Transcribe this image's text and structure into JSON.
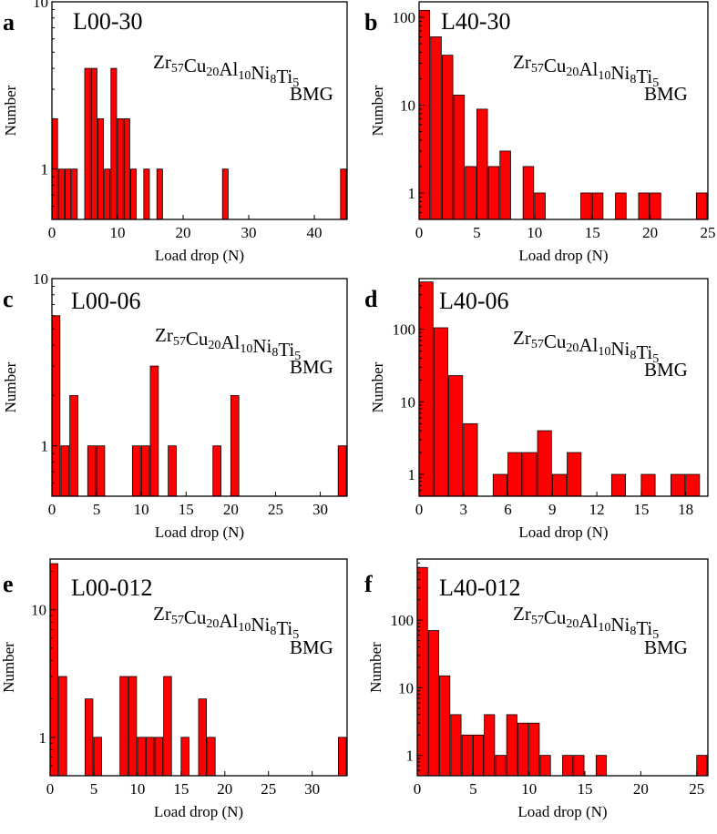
{
  "chart_data": [
    {
      "type": "bar",
      "panel": "a",
      "title": "L00-30",
      "material": "Zr57Cu20Al10Ni8Ti5",
      "material_parts": [
        [
          "Zr",
          ""
        ],
        [
          "",
          "57"
        ],
        [
          "Cu",
          ""
        ],
        [
          "",
          "20"
        ],
        [
          "Al",
          ""
        ],
        [
          "",
          "10"
        ],
        [
          "Ni",
          ""
        ],
        [
          "",
          "8"
        ],
        [
          "Ti",
          ""
        ],
        [
          "",
          "5"
        ]
      ],
      "label_bmg": "BMG",
      "xlabel": "Load drop (N)",
      "ylabel": "Number",
      "yscale": "log",
      "xlim": [
        0,
        45
      ],
      "ylim": [
        0.5,
        10
      ],
      "xticks": [
        0,
        10,
        20,
        30,
        40
      ],
      "yticks": [
        1,
        10
      ],
      "bin_width": 1,
      "bars": [
        {
          "x": 0,
          "value": 2
        },
        {
          "x": 1,
          "value": 1
        },
        {
          "x": 2,
          "value": 1
        },
        {
          "x": 3,
          "value": 1
        },
        {
          "x": 5,
          "value": 4
        },
        {
          "x": 6,
          "value": 4
        },
        {
          "x": 7,
          "value": 2
        },
        {
          "x": 8,
          "value": 1
        },
        {
          "x": 9,
          "value": 4
        },
        {
          "x": 10,
          "value": 2
        },
        {
          "x": 11,
          "value": 2
        },
        {
          "x": 12,
          "value": 1
        },
        {
          "x": 14,
          "value": 1
        },
        {
          "x": 16,
          "value": 1
        },
        {
          "x": 26,
          "value": 1
        },
        {
          "x": 44,
          "value": 1
        }
      ]
    },
    {
      "type": "bar",
      "panel": "b",
      "title": "L40-30",
      "material": "Zr57Cu20Al10Ni8Ti5",
      "material_parts": [
        [
          "Zr",
          ""
        ],
        [
          "",
          "57"
        ],
        [
          "Cu",
          ""
        ],
        [
          "",
          "20"
        ],
        [
          "Al",
          ""
        ],
        [
          "",
          "10"
        ],
        [
          "Ni",
          ""
        ],
        [
          "",
          "8"
        ],
        [
          "Ti",
          ""
        ],
        [
          "",
          "5"
        ]
      ],
      "label_bmg": "BMG",
      "xlabel": "Load drop (N)",
      "ylabel": "Number",
      "yscale": "log",
      "xlim": [
        0,
        25
      ],
      "ylim": [
        0.5,
        150
      ],
      "xticks": [
        0,
        5,
        10,
        15,
        20,
        25
      ],
      "yticks": [
        1,
        10,
        100
      ],
      "bin_width": 1,
      "bars": [
        {
          "x": 0,
          "value": 120
        },
        {
          "x": 1,
          "value": 60
        },
        {
          "x": 2,
          "value": 37
        },
        {
          "x": 3,
          "value": 13
        },
        {
          "x": 4,
          "value": 2
        },
        {
          "x": 5,
          "value": 9
        },
        {
          "x": 6,
          "value": 2
        },
        {
          "x": 7,
          "value": 3
        },
        {
          "x": 9,
          "value": 2
        },
        {
          "x": 10,
          "value": 1
        },
        {
          "x": 14,
          "value": 1
        },
        {
          "x": 15,
          "value": 1
        },
        {
          "x": 17,
          "value": 1
        },
        {
          "x": 19,
          "value": 1
        },
        {
          "x": 20,
          "value": 1
        },
        {
          "x": 24,
          "value": 1
        }
      ]
    },
    {
      "type": "bar",
      "panel": "c",
      "title": "L00-06",
      "material": "Zr57Cu20Al10Ni8Ti5",
      "material_parts": [
        [
          "Zr",
          ""
        ],
        [
          "",
          "57"
        ],
        [
          "Cu",
          ""
        ],
        [
          "",
          "20"
        ],
        [
          "Al",
          ""
        ],
        [
          "",
          "10"
        ],
        [
          "Ni",
          ""
        ],
        [
          "",
          "8"
        ],
        [
          "Ti",
          ""
        ],
        [
          "",
          "5"
        ]
      ],
      "label_bmg": "BMG",
      "xlabel": "Load drop (N)",
      "ylabel": "Number",
      "yscale": "log",
      "xlim": [
        0,
        33
      ],
      "ylim": [
        0.5,
        10
      ],
      "xticks": [
        0,
        5,
        10,
        15,
        20,
        25,
        30
      ],
      "yticks": [
        1,
        10
      ],
      "bin_width": 1,
      "bars": [
        {
          "x": 0,
          "value": 6
        },
        {
          "x": 1,
          "value": 1
        },
        {
          "x": 2,
          "value": 2
        },
        {
          "x": 4,
          "value": 1
        },
        {
          "x": 5,
          "value": 1
        },
        {
          "x": 9,
          "value": 1
        },
        {
          "x": 10,
          "value": 1
        },
        {
          "x": 11,
          "value": 3
        },
        {
          "x": 13,
          "value": 1
        },
        {
          "x": 18,
          "value": 1
        },
        {
          "x": 20,
          "value": 2
        },
        {
          "x": 32,
          "value": 1
        }
      ]
    },
    {
      "type": "bar",
      "panel": "d",
      "title": "L40-06",
      "material": "Zr57Cu20Al10Ni8Ti5",
      "material_parts": [
        [
          "Zr",
          ""
        ],
        [
          "",
          "57"
        ],
        [
          "Cu",
          ""
        ],
        [
          "",
          "20"
        ],
        [
          "Al",
          ""
        ],
        [
          "",
          "10"
        ],
        [
          "Ni",
          ""
        ],
        [
          "",
          "8"
        ],
        [
          "Ti",
          ""
        ],
        [
          "",
          "5"
        ]
      ],
      "label_bmg": "BMG",
      "xlabel": "Load drop (N)",
      "ylabel": "Number",
      "yscale": "log",
      "xlim": [
        0,
        19.5
      ],
      "ylim": [
        0.5,
        500
      ],
      "xticks": [
        0,
        3,
        6,
        9,
        12,
        15,
        18
      ],
      "yticks": [
        1,
        10,
        100
      ],
      "bin_width": 1,
      "bars": [
        {
          "x": 0,
          "value": 450
        },
        {
          "x": 1,
          "value": 105
        },
        {
          "x": 2,
          "value": 23
        },
        {
          "x": 3,
          "value": 5
        },
        {
          "x": 5,
          "value": 1
        },
        {
          "x": 6,
          "value": 2
        },
        {
          "x": 7,
          "value": 2
        },
        {
          "x": 8,
          "value": 4
        },
        {
          "x": 9,
          "value": 1
        },
        {
          "x": 10,
          "value": 2
        },
        {
          "x": 13,
          "value": 1
        },
        {
          "x": 15,
          "value": 1
        },
        {
          "x": 17,
          "value": 1
        },
        {
          "x": 18,
          "value": 1
        }
      ]
    },
    {
      "type": "bar",
      "panel": "e",
      "title": "L00-012",
      "material": "Zr57Cu20Al10Ni8Ti5",
      "material_parts": [
        [
          "Zr",
          ""
        ],
        [
          "",
          "57"
        ],
        [
          "Cu",
          ""
        ],
        [
          "",
          "20"
        ],
        [
          "Al",
          ""
        ],
        [
          "",
          "10"
        ],
        [
          "Ni",
          ""
        ],
        [
          "",
          "8"
        ],
        [
          "Ti",
          ""
        ],
        [
          "",
          "5"
        ]
      ],
      "label_bmg": "BMG",
      "xlabel": "Load drop (N)",
      "ylabel": "Number",
      "yscale": "log",
      "xlim": [
        0,
        34
      ],
      "ylim": [
        0.5,
        25
      ],
      "xticks": [
        0,
        5,
        10,
        15,
        20,
        25,
        30
      ],
      "yticks": [
        1,
        10
      ],
      "bin_width": 1,
      "bars": [
        {
          "x": 0,
          "value": 23
        },
        {
          "x": 1,
          "value": 3
        },
        {
          "x": 4,
          "value": 2
        },
        {
          "x": 5,
          "value": 1
        },
        {
          "x": 8,
          "value": 3
        },
        {
          "x": 9,
          "value": 3
        },
        {
          "x": 10,
          "value": 1
        },
        {
          "x": 11,
          "value": 1
        },
        {
          "x": 12,
          "value": 1
        },
        {
          "x": 13,
          "value": 3
        },
        {
          "x": 15,
          "value": 1
        },
        {
          "x": 17,
          "value": 2
        },
        {
          "x": 18,
          "value": 1
        },
        {
          "x": 33,
          "value": 1
        }
      ]
    },
    {
      "type": "bar",
      "panel": "f",
      "title": "L40-012",
      "material": "Zr57Cu20Al10Ni8Ti5",
      "material_parts": [
        [
          "Zr",
          ""
        ],
        [
          "",
          "57"
        ],
        [
          "Cu",
          ""
        ],
        [
          "",
          "20"
        ],
        [
          "Al",
          ""
        ],
        [
          "",
          "10"
        ],
        [
          "Ni",
          ""
        ],
        [
          "",
          "8"
        ],
        [
          "Ti",
          ""
        ],
        [
          "",
          "5"
        ]
      ],
      "label_bmg": "BMG",
      "xlabel": "Load drop (N)",
      "ylabel": "Number",
      "yscale": "log",
      "xlim": [
        0,
        26
      ],
      "ylim": [
        0.5,
        800
      ],
      "xticks": [
        0,
        5,
        10,
        15,
        20,
        25
      ],
      "yticks": [
        1,
        10,
        100
      ],
      "bin_width": 1,
      "bars": [
        {
          "x": 0,
          "value": 600
        },
        {
          "x": 1,
          "value": 70
        },
        {
          "x": 2,
          "value": 15
        },
        {
          "x": 3,
          "value": 4
        },
        {
          "x": 4,
          "value": 2
        },
        {
          "x": 5,
          "value": 2
        },
        {
          "x": 6,
          "value": 4
        },
        {
          "x": 7,
          "value": 1
        },
        {
          "x": 8,
          "value": 4
        },
        {
          "x": 9,
          "value": 3
        },
        {
          "x": 10,
          "value": 3
        },
        {
          "x": 11,
          "value": 1
        },
        {
          "x": 13,
          "value": 1
        },
        {
          "x": 14,
          "value": 1
        },
        {
          "x": 16,
          "value": 1
        },
        {
          "x": 25,
          "value": 1
        }
      ]
    }
  ]
}
